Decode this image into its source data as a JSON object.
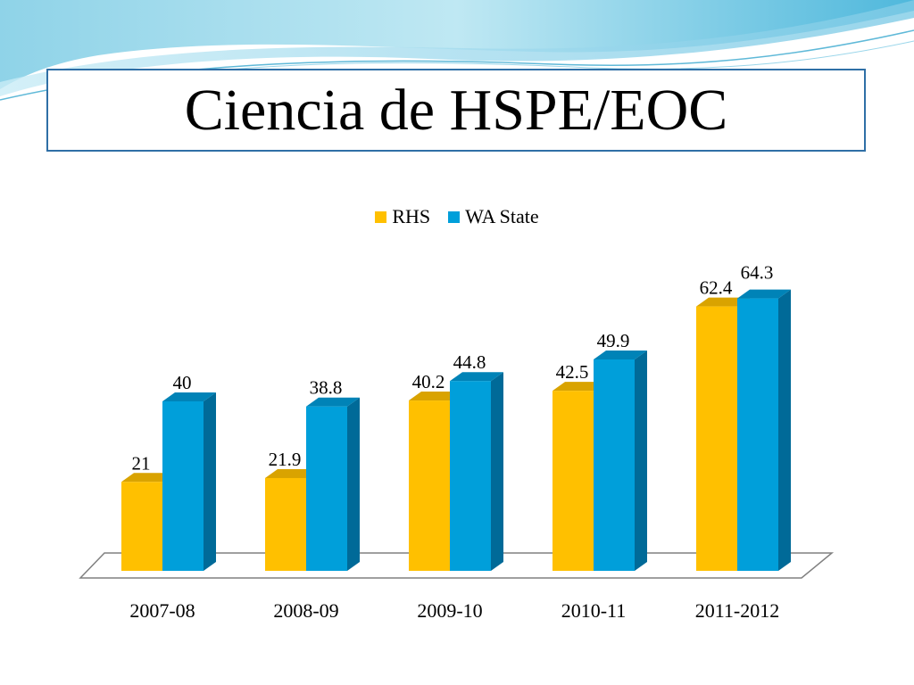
{
  "slide": {
    "title": "Ciencia de HSPE/EOC"
  },
  "colors": {
    "rhs": "#FFC000",
    "rhs_side": "#C08F00",
    "rhs_top": "#D9A300",
    "wa": "#009FDA",
    "wa_side": "#006A98",
    "wa_top": "#0083B7",
    "title_border": "#2F6FA6"
  },
  "chart_data": {
    "type": "bar",
    "categories": [
      "2007-08",
      "2008-09",
      "2009-10",
      "2010-11",
      "2011-2012"
    ],
    "series": [
      {
        "name": "RHS",
        "values": [
          21,
          21.9,
          40.2,
          42.5,
          62.4
        ],
        "labels": [
          "21",
          "21.9",
          "40.2",
          "42.5",
          "62.4"
        ]
      },
      {
        "name": "WA State",
        "values": [
          40,
          38.8,
          44.8,
          49.9,
          64.3
        ],
        "labels": [
          "40",
          "38.8",
          "44.8",
          "49.9",
          "64.3"
        ]
      }
    ],
    "legend_position": "top-center",
    "grid": false,
    "style": "3d-clustered-column"
  }
}
